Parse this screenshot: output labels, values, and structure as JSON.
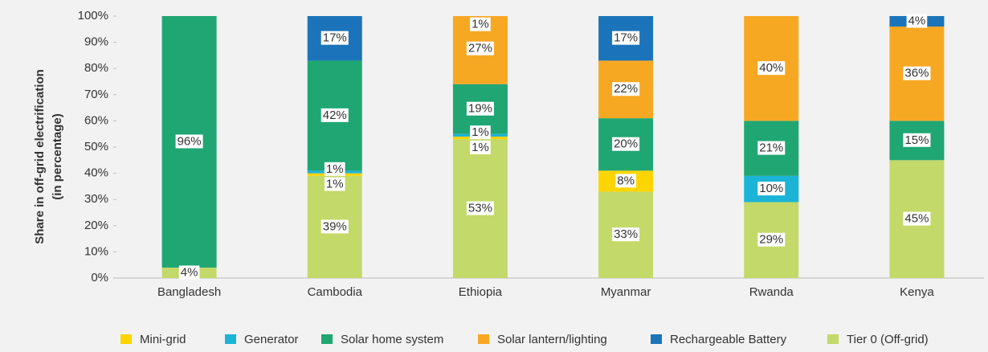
{
  "chart_data": {
    "type": "stacked_bar",
    "ylabel": [
      "Share in off-grid electrification",
      "(in percentage)"
    ],
    "categories": [
      "Bangladesh",
      "Cambodia",
      "Ethiopia",
      "Myanmar",
      "Rwanda",
      "Kenya"
    ],
    "ylim": [
      0,
      100
    ],
    "yticks": [
      {
        "value": 0,
        "label": "0%"
      },
      {
        "value": 10,
        "label": "10%"
      },
      {
        "value": 20,
        "label": "20%"
      },
      {
        "value": 30,
        "label": "30%"
      },
      {
        "value": 40,
        "label": "40%"
      },
      {
        "value": 50,
        "label": "50%"
      },
      {
        "value": 60,
        "label": "60%"
      },
      {
        "value": 70,
        "label": "70%"
      },
      {
        "value": 80,
        "label": "80%"
      },
      {
        "value": 90,
        "label": "90%"
      },
      {
        "value": 100,
        "label": "100%"
      }
    ],
    "legend": "bottom",
    "series": [
      {
        "name": "Mini-grid",
        "color": "#ffd500",
        "values": [
          null,
          1,
          1,
          8,
          null,
          null
        ],
        "value_labels": [
          null,
          "1%",
          "1%",
          "8%",
          null,
          null
        ]
      },
      {
        "name": "Generator",
        "color": "#1bb4d6",
        "values": [
          null,
          1,
          1,
          null,
          10,
          null
        ],
        "value_labels": [
          null,
          "1%",
          "1%",
          null,
          "10%",
          null
        ]
      },
      {
        "name": "Solar home system",
        "color": "#1fa673",
        "values": [
          96,
          42,
          19,
          20,
          21,
          15
        ],
        "value_labels": [
          "96%",
          "42%",
          "19%",
          "20%",
          "21%",
          "15%"
        ]
      },
      {
        "name": "Solar lantern/lighting",
        "color": "#f7a823",
        "values": [
          null,
          null,
          27,
          22,
          40,
          36
        ],
        "value_labels": [
          null,
          null,
          "27%",
          "22%",
          "40%",
          "36%"
        ]
      },
      {
        "name": "Rechargeable Battery",
        "color": "#1b74b9",
        "values": [
          null,
          17,
          1,
          17,
          null,
          4
        ],
        "value_labels": [
          null,
          "17%",
          "1%",
          "17%",
          null,
          "4%"
        ]
      },
      {
        "name": "Tier 0 (Off-grid)",
        "color": "#c3d969",
        "values": [
          4,
          39,
          53,
          33,
          29,
          45
        ],
        "value_labels": [
          "4%",
          "39%",
          "53%",
          "33%",
          "29%",
          "45%"
        ]
      }
    ]
  }
}
